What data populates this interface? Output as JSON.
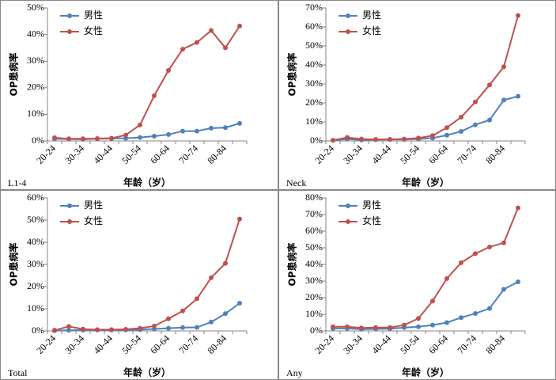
{
  "chart_data": [
    {
      "type": "line",
      "title": "L1-4",
      "x_label": "年龄（岁）",
      "y_label": "OP患病率",
      "categories": [
        "20-24",
        null,
        "30-34",
        null,
        "40-44",
        null,
        "50-54",
        null,
        "60-64",
        null,
        "70-74",
        null,
        "80-84",
        null
      ],
      "series": [
        {
          "name": "男性",
          "color": "#4f81bd",
          "values": [
            0.8,
            0.7,
            0.6,
            0.8,
            0.9,
            1.0,
            1.3,
            1.8,
            2.4,
            3.7,
            3.7,
            4.8,
            5,
            6.6
          ]
        },
        {
          "name": "女性",
          "color": "#c0504d",
          "values": [
            1.2,
            0.8,
            0.8,
            0.9,
            1.0,
            2.2,
            6,
            17,
            26.5,
            34.5,
            37,
            41.5,
            35,
            43.2
          ]
        }
      ],
      "ylim": [
        0,
        50
      ],
      "yticks": [
        {
          "value": 0,
          "label": "0%"
        },
        {
          "value": 10,
          "label": "10%"
        },
        {
          "value": 20,
          "label": "20%"
        },
        {
          "value": 30,
          "label": "30%"
        },
        {
          "value": 40,
          "label": "40%"
        },
        {
          "value": 50,
          "label": "50%"
        }
      ]
    },
    {
      "type": "line",
      "title": "Neck",
      "x_label": "年龄（岁）",
      "y_label": "OP患病率",
      "categories": [
        "20-24",
        null,
        "30-34",
        null,
        "40-44",
        null,
        "50-54",
        null,
        "60-64",
        null,
        "70-74",
        null,
        "80-84",
        null
      ],
      "series": [
        {
          "name": "男性",
          "color": "#4f81bd",
          "values": [
            0.3,
            1,
            0.5,
            0.7,
            0.8,
            0.8,
            1,
            1.5,
            3,
            5,
            8.5,
            11,
            21.5,
            23.5
          ]
        },
        {
          "name": "女性",
          "color": "#c0504d",
          "values": [
            0.3,
            1.8,
            1,
            0.8,
            0.8,
            1,
            1.5,
            2.8,
            7,
            12.5,
            20.5,
            29.5,
            39,
            66
          ]
        }
      ],
      "ylim": [
        0,
        70
      ],
      "yticks": [
        {
          "value": 0,
          "label": "0%"
        },
        {
          "value": 10,
          "label": "10%"
        },
        {
          "value": 20,
          "label": "20%"
        },
        {
          "value": 30,
          "label": "30%"
        },
        {
          "value": 40,
          "label": "40%"
        },
        {
          "value": 50,
          "label": "50%"
        },
        {
          "value": 60,
          "label": "60%"
        },
        {
          "value": 70,
          "label": "70%"
        }
      ]
    },
    {
      "type": "line",
      "title": "Total",
      "x_label": "年龄（岁）",
      "y_label": "OP患病率",
      "categories": [
        "20-24",
        null,
        "30-34",
        null,
        "40-44",
        null,
        "50-54",
        null,
        "60-64",
        null,
        "70-74",
        null,
        "80-84",
        null
      ],
      "series": [
        {
          "name": "男性",
          "color": "#4f81bd",
          "values": [
            0.1,
            0.3,
            0.4,
            0.4,
            0.4,
            0.5,
            0.6,
            0.9,
            1.2,
            1.5,
            1.6,
            4,
            7.8,
            12.5
          ]
        },
        {
          "name": "女性",
          "color": "#c0504d",
          "values": [
            0.3,
            2,
            0.8,
            0.6,
            0.6,
            0.7,
            1.2,
            2.2,
            5.5,
            9,
            14.5,
            24,
            30.5,
            50.5
          ]
        }
      ],
      "ylim": [
        0,
        60
      ],
      "yticks": [
        {
          "value": 0,
          "label": "0%"
        },
        {
          "value": 10,
          "label": "10%"
        },
        {
          "value": 20,
          "label": "20%"
        },
        {
          "value": 30,
          "label": "30%"
        },
        {
          "value": 40,
          "label": "40%"
        },
        {
          "value": 50,
          "label": "50%"
        },
        {
          "value": 60,
          "label": "60%"
        }
      ]
    },
    {
      "type": "line",
      "title": "Any",
      "x_label": "年龄（岁）",
      "y_label": "OP患病率",
      "categories": [
        "20-24",
        null,
        "30-34",
        null,
        "40-44",
        null,
        "50-54",
        null,
        "60-64",
        null,
        "70-74",
        null,
        "80-84",
        null
      ],
      "series": [
        {
          "name": "男性",
          "color": "#4f81bd",
          "values": [
            1.5,
            1.5,
            1,
            1.2,
            1.3,
            2,
            2.5,
            3.5,
            5,
            8,
            10.5,
            13.5,
            25,
            29.5
          ]
        },
        {
          "name": "女性",
          "color": "#c0504d",
          "values": [
            2.5,
            2.5,
            1.8,
            2,
            2,
            3.5,
            7.5,
            18,
            31.5,
            41,
            46.5,
            50.5,
            53,
            74
          ]
        }
      ],
      "ylim": [
        0,
        80
      ],
      "yticks": [
        {
          "value": 0,
          "label": "0%"
        },
        {
          "value": 10,
          "label": "10%"
        },
        {
          "value": 20,
          "label": "20%"
        },
        {
          "value": 30,
          "label": "30%"
        },
        {
          "value": 40,
          "label": "40%"
        },
        {
          "value": 50,
          "label": "50%"
        },
        {
          "value": 60,
          "label": "60%"
        },
        {
          "value": 70,
          "label": "70%"
        },
        {
          "value": 80,
          "label": "80%"
        }
      ]
    }
  ]
}
